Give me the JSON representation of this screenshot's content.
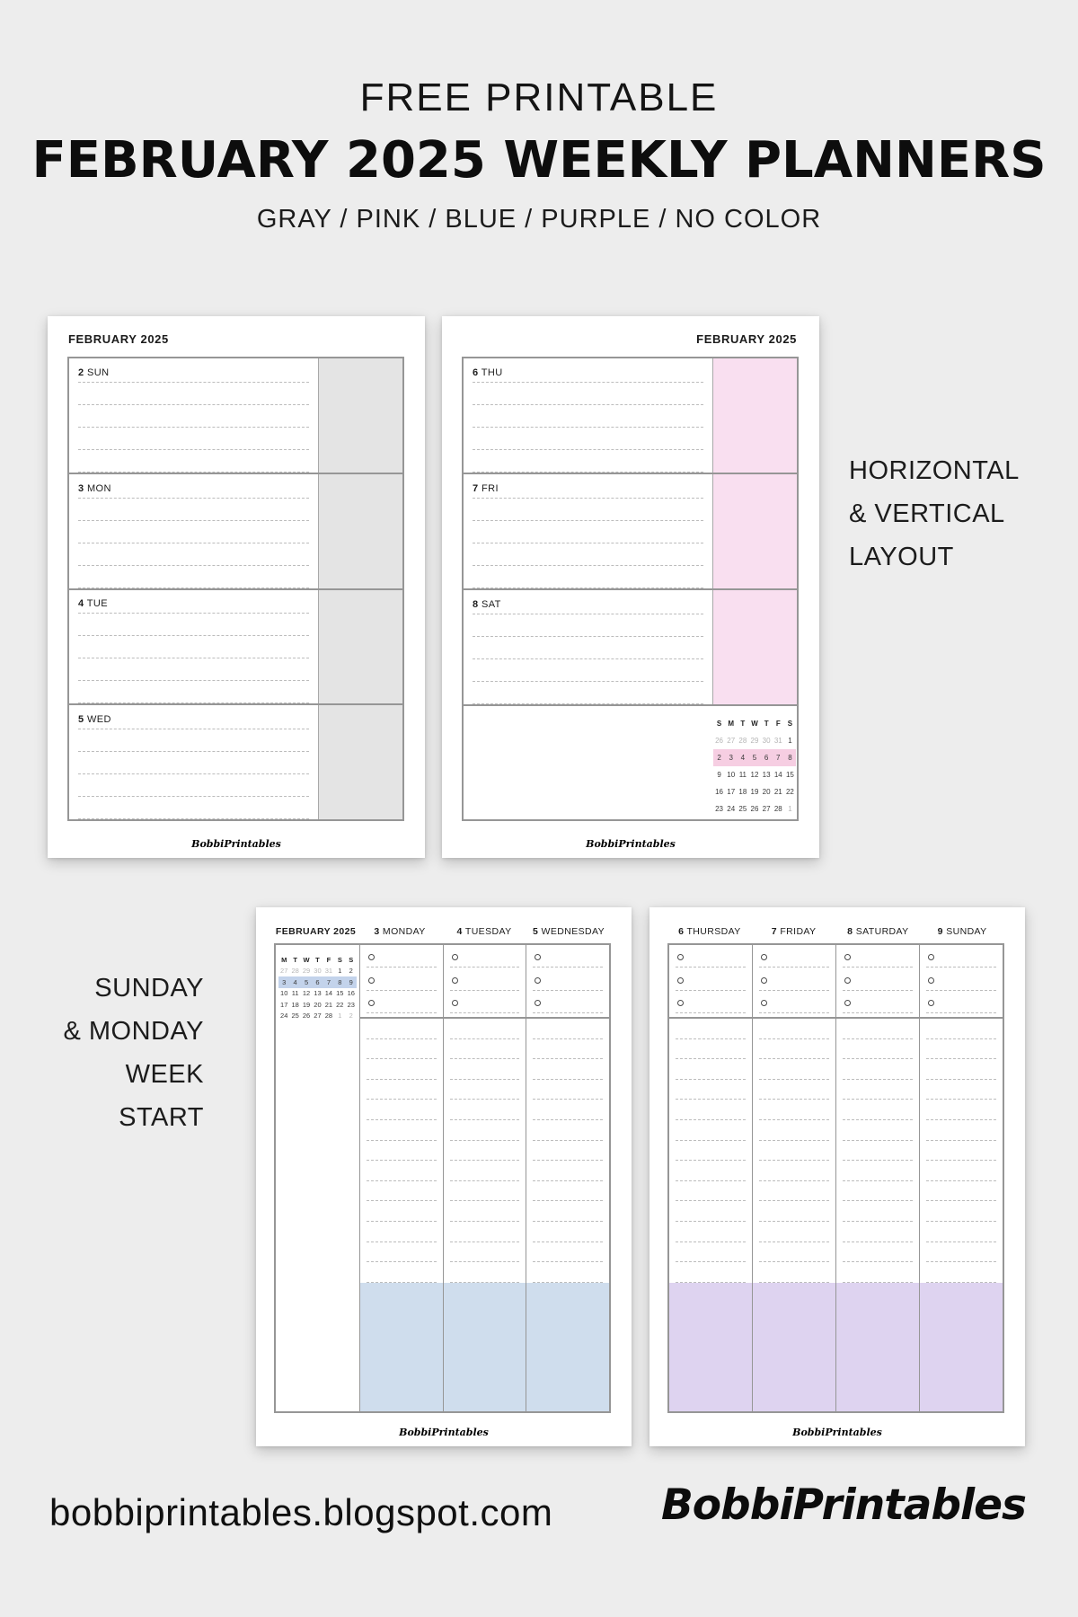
{
  "header": {
    "title_small": "FREE PRINTABLE",
    "title_main": "FEBRUARY 2025 WEEKLY PLANNERS",
    "subtitle": "GRAY / PINK / BLUE / PURPLE / NO COLOR"
  },
  "labels": {
    "layout": [
      "HORIZONTAL",
      "& VERTICAL",
      "LAYOUT"
    ],
    "weekstart": [
      "SUNDAY",
      "& MONDAY",
      "WEEK START"
    ]
  },
  "footer": {
    "url": "bobbiprintables.blogspot.com",
    "brand": "BobbiPrintables"
  },
  "colors": {
    "page_bg": "#ededed",
    "paper_border": "#969696",
    "dashed_line": "#bcbcbc",
    "gray_accent": "#e4e4e4",
    "pink_accent": "#f9dff0",
    "pink_highlight": "#f6cee2",
    "blue_accent": "#cfdded",
    "blue_highlight": "#c3d3eb",
    "purple_accent": "#ded3f0"
  },
  "planners": {
    "gray": {
      "month_title": "FEBRUARY 2025",
      "title_align": "left",
      "accent": "#e4e4e4",
      "lines_per_day": 5,
      "days": [
        {
          "num": "2",
          "name": "SUN"
        },
        {
          "num": "3",
          "name": "MON"
        },
        {
          "num": "4",
          "name": "TUE"
        },
        {
          "num": "5",
          "name": "WED"
        }
      ],
      "watermark": "BobbiPrintables"
    },
    "pink": {
      "month_title": "FEBRUARY 2025",
      "title_align": "right",
      "accent": "#f9dff0",
      "lines_per_day": 5,
      "days": [
        {
          "num": "6",
          "name": "THU"
        },
        {
          "num": "7",
          "name": "FRI"
        },
        {
          "num": "8",
          "name": "SAT"
        }
      ],
      "bottom_section": true,
      "mini_calendar": {
        "header": [
          "S",
          "M",
          "T",
          "W",
          "T",
          "F",
          "S"
        ],
        "highlight_row": 1,
        "highlight_color": "#f6cee2",
        "rows": [
          [
            {
              "d": "26",
              "muted": true
            },
            {
              "d": "27",
              "muted": true
            },
            {
              "d": "28",
              "muted": true
            },
            {
              "d": "29",
              "muted": true
            },
            {
              "d": "30",
              "muted": true
            },
            {
              "d": "31",
              "muted": true
            },
            {
              "d": "1"
            }
          ],
          [
            {
              "d": "2"
            },
            {
              "d": "3"
            },
            {
              "d": "4"
            },
            {
              "d": "5"
            },
            {
              "d": "6"
            },
            {
              "d": "7"
            },
            {
              "d": "8"
            }
          ],
          [
            {
              "d": "9"
            },
            {
              "d": "10"
            },
            {
              "d": "11"
            },
            {
              "d": "12"
            },
            {
              "d": "13"
            },
            {
              "d": "14"
            },
            {
              "d": "15"
            }
          ],
          [
            {
              "d": "16"
            },
            {
              "d": "17"
            },
            {
              "d": "18"
            },
            {
              "d": "19"
            },
            {
              "d": "20"
            },
            {
              "d": "21"
            },
            {
              "d": "22"
            }
          ],
          [
            {
              "d": "23"
            },
            {
              "d": "24"
            },
            {
              "d": "25"
            },
            {
              "d": "26"
            },
            {
              "d": "27"
            },
            {
              "d": "28"
            },
            {
              "d": "1",
              "muted": true
            }
          ]
        ]
      },
      "watermark": "BobbiPrintables"
    },
    "blue": {
      "month_title": "FEBRUARY 2025",
      "accent": "#cfdded",
      "has_sidebar": true,
      "bullet_rows": 3,
      "line_rows": 13,
      "columns": [
        {
          "num": "3",
          "name": "MONDAY"
        },
        {
          "num": "4",
          "name": "TUESDAY"
        },
        {
          "num": "5",
          "name": "WEDNESDAY"
        }
      ],
      "mini_calendar": {
        "header": [
          "M",
          "T",
          "W",
          "T",
          "F",
          "S",
          "S"
        ],
        "highlight_row": 1,
        "highlight_color": "#c3d3eb",
        "rows": [
          [
            {
              "d": "27",
              "muted": true
            },
            {
              "d": "28",
              "muted": true
            },
            {
              "d": "29",
              "muted": true
            },
            {
              "d": "30",
              "muted": true
            },
            {
              "d": "31",
              "muted": true
            },
            {
              "d": "1"
            },
            {
              "d": "2"
            }
          ],
          [
            {
              "d": "3"
            },
            {
              "d": "4"
            },
            {
              "d": "5"
            },
            {
              "d": "6"
            },
            {
              "d": "7"
            },
            {
              "d": "8"
            },
            {
              "d": "9"
            }
          ],
          [
            {
              "d": "10"
            },
            {
              "d": "11"
            },
            {
              "d": "12"
            },
            {
              "d": "13"
            },
            {
              "d": "14"
            },
            {
              "d": "15"
            },
            {
              "d": "16"
            }
          ],
          [
            {
              "d": "17"
            },
            {
              "d": "18"
            },
            {
              "d": "19"
            },
            {
              "d": "20"
            },
            {
              "d": "21"
            },
            {
              "d": "22"
            },
            {
              "d": "23"
            }
          ],
          [
            {
              "d": "24"
            },
            {
              "d": "25"
            },
            {
              "d": "26"
            },
            {
              "d": "27"
            },
            {
              "d": "28"
            },
            {
              "d": "1",
              "muted": true
            },
            {
              "d": "2",
              "muted": true
            }
          ]
        ]
      },
      "watermark": "BobbiPrintables"
    },
    "purple": {
      "accent": "#ded3f0",
      "has_sidebar": false,
      "bullet_rows": 3,
      "line_rows": 13,
      "columns": [
        {
          "num": "6",
          "name": "THURSDAY"
        },
        {
          "num": "7",
          "name": "FRIDAY"
        },
        {
          "num": "8",
          "name": "SATURDAY"
        },
        {
          "num": "9",
          "name": "SUNDAY"
        }
      ],
      "watermark": "BobbiPrintables"
    }
  }
}
